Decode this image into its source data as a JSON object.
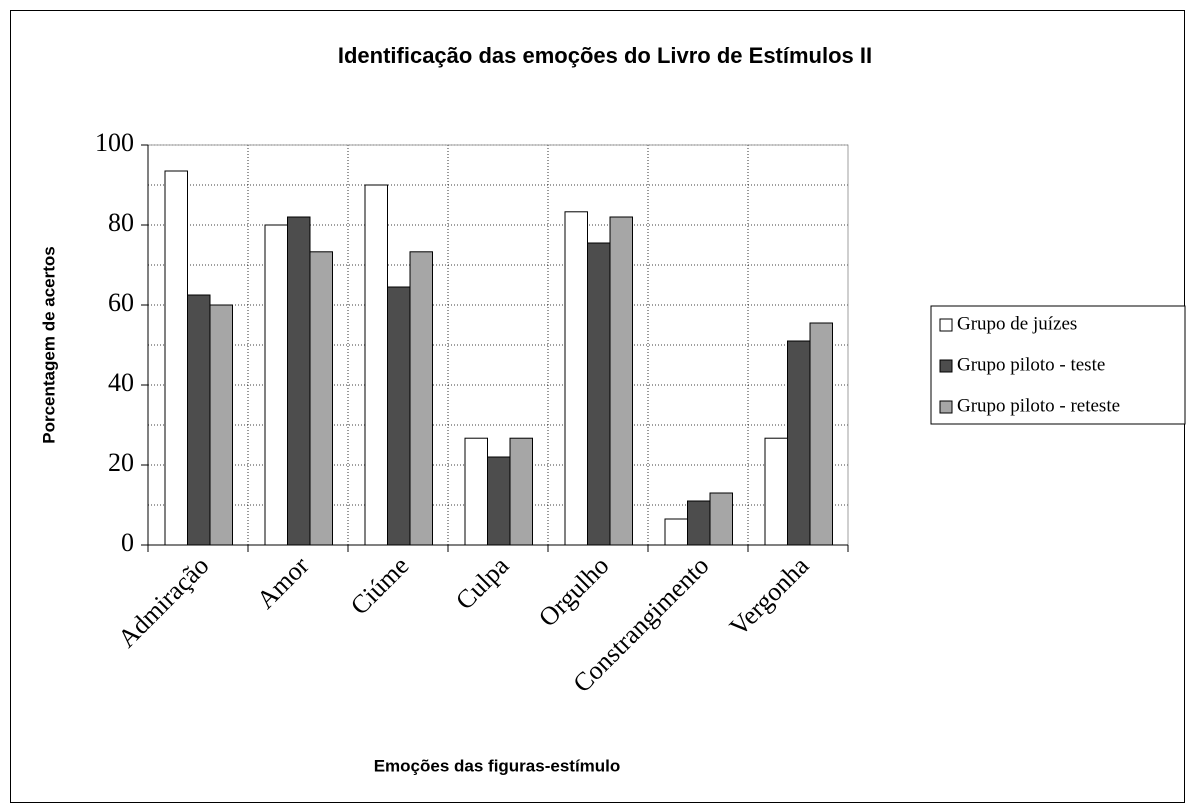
{
  "chart_data": {
    "type": "bar",
    "title": "Identificação das emoções do Livro de Estímulos II",
    "x_label": "Emoções das figuras-estímulo",
    "y_label": "Porcentagem de acertos",
    "categories": [
      "Admiração",
      "Amor",
      "Ciúme",
      "Culpa",
      "Orgulho",
      "Constrangimento",
      "Vergonha"
    ],
    "series": [
      {
        "name": "Grupo de juízes",
        "color": "#ffffff",
        "values": [
          93.5,
          80,
          90,
          26.7,
          83.3,
          6.5,
          26.7
        ]
      },
      {
        "name": "Grupo piloto - teste",
        "color": "#4d4d4d",
        "values": [
          62.5,
          82,
          64.5,
          22,
          75.5,
          11,
          51
        ]
      },
      {
        "name": "Grupo piloto - reteste",
        "color": "#a6a6a6",
        "values": [
          60,
          73.3,
          73.3,
          26.7,
          82,
          13,
          55.5
        ]
      }
    ],
    "ylim": [
      0,
      100
    ],
    "yticks": [
      0,
      20,
      40,
      60,
      80,
      100
    ],
    "grid_yticks": [
      10,
      20,
      30,
      40,
      50,
      60,
      70,
      80,
      90,
      100
    ],
    "grid": true,
    "legend": "right"
  }
}
